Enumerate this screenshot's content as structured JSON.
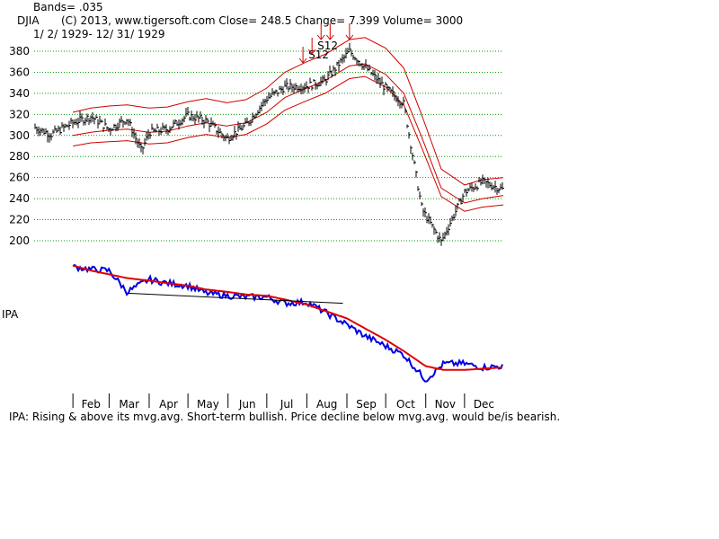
{
  "header": {
    "bands": "Bands= .035",
    "symbol": "DJIA",
    "info": "(C) 2013, www.tigersoft.com    Close=  248.5  Change= 7.399 Volume= 3000",
    "date_range": "1/ 2/ 1929- 12/ 31/ 1929"
  },
  "chart_data": [
    {
      "type": "line",
      "title": "DJIA",
      "subtitle": "1/ 2/ 1929- 12/ 31/ 1929",
      "ylim": [
        195,
        390
      ],
      "yticks": [
        200,
        220,
        240,
        260,
        280,
        300,
        320,
        340,
        360,
        380
      ],
      "grid": true,
      "x": [
        "1929-01-02",
        "1929-01-15",
        "1929-02-01",
        "1929-02-15",
        "1929-03-01",
        "1929-03-15",
        "1929-03-26",
        "1929-04-01",
        "1929-04-15",
        "1929-05-01",
        "1929-05-15",
        "1929-05-31",
        "1929-06-15",
        "1929-07-01",
        "1929-07-15",
        "1929-08-01",
        "1929-08-15",
        "1929-09-03",
        "1929-09-15",
        "1929-10-01",
        "1929-10-15",
        "1929-10-29",
        "1929-11-13",
        "1929-12-01",
        "1929-12-15",
        "1929-12-31"
      ],
      "series": [
        {
          "values": [
            308,
            301,
            312,
            318,
            306,
            316,
            285,
            303,
            306,
            319,
            314,
            297,
            310,
            335,
            346,
            347,
            352,
            380,
            365,
            345,
            330,
            230,
            199,
            246,
            256,
            248.5
          ]
        },
        {
          "values": [
            null,
            null,
            300,
            303,
            305,
            306,
            304,
            303,
            304,
            309,
            312,
            309,
            312,
            322,
            336,
            345,
            352,
            366,
            368,
            358,
            340,
            298,
            250,
            236,
            240,
            243
          ]
        },
        {
          "values": [
            null,
            null,
            322,
            326,
            328,
            329,
            327,
            326,
            327,
            332,
            335,
            331,
            334,
            345,
            360,
            370,
            377,
            391,
            393,
            383,
            364,
            319,
            268,
            253,
            258,
            260
          ]
        },
        {
          "values": [
            null,
            null,
            290,
            293,
            294,
            295,
            293,
            292,
            293,
            298,
            301,
            298,
            301,
            311,
            324,
            333,
            340,
            354,
            356,
            346,
            329,
            288,
            242,
            228,
            232,
            234
          ]
        }
      ],
      "signals": [
        {
          "label": "S12",
          "date": "1929-07-29"
        },
        {
          "label": "S12",
          "date": "1929-08-05"
        },
        {
          "label": "",
          "date": "1929-08-12"
        },
        {
          "label": "",
          "date": "1929-08-19"
        },
        {
          "label": "",
          "date": "1929-09-03"
        }
      ]
    },
    {
      "type": "line",
      "title": "IPA",
      "ylim": [
        0,
        1
      ],
      "x": [
        "1929-02-01",
        "1929-02-15",
        "1929-03-01",
        "1929-03-15",
        "1929-04-01",
        "1929-04-15",
        "1929-05-01",
        "1929-05-15",
        "1929-06-01",
        "1929-06-15",
        "1929-07-01",
        "1929-07-15",
        "1929-08-01",
        "1929-08-15",
        "1929-09-01",
        "1929-09-15",
        "1929-10-01",
        "1929-10-15",
        "1929-11-01",
        "1929-11-15",
        "1929-12-01",
        "1929-12-15",
        "1929-12-31"
      ],
      "series": [
        {
          "values": [
            0.95,
            0.93,
            0.92,
            0.75,
            0.85,
            0.82,
            0.8,
            0.74,
            0.72,
            0.71,
            0.71,
            0.66,
            0.67,
            0.59,
            0.49,
            0.4,
            0.32,
            0.25,
            0.05,
            0.18,
            0.18,
            0.15,
            0.16
          ]
        },
        {
          "values": [
            0.96,
            0.92,
            0.89,
            0.86,
            0.84,
            0.82,
            0.8,
            0.77,
            0.75,
            0.73,
            0.72,
            0.69,
            0.65,
            0.6,
            0.54,
            0.46,
            0.37,
            0.28,
            0.16,
            0.13,
            0.13,
            0.14,
            0.15
          ]
        }
      ],
      "trendline": {
        "x": [
          "1929-03-15",
          "1929-08-29"
        ],
        "values": [
          0.74,
          0.66
        ]
      }
    }
  ],
  "x_axis": {
    "months": [
      "Feb",
      "Mar",
      "Apr",
      "May",
      "Jun",
      "Jul",
      "Aug",
      "Sep",
      "Oct",
      "Nov",
      "Dec"
    ]
  },
  "ipa": {
    "label": "IPA",
    "note": "IPA: Rising & above its mvg.avg. Short-term bullish. Price decline below mvg.avg. would be/is bearish."
  },
  "colors": {
    "price": "#000000",
    "bands": "#d00000",
    "grid": "#00a000",
    "ipa": "#0000e0",
    "ipa_avg": "#e00000",
    "signal": "#d00000"
  }
}
